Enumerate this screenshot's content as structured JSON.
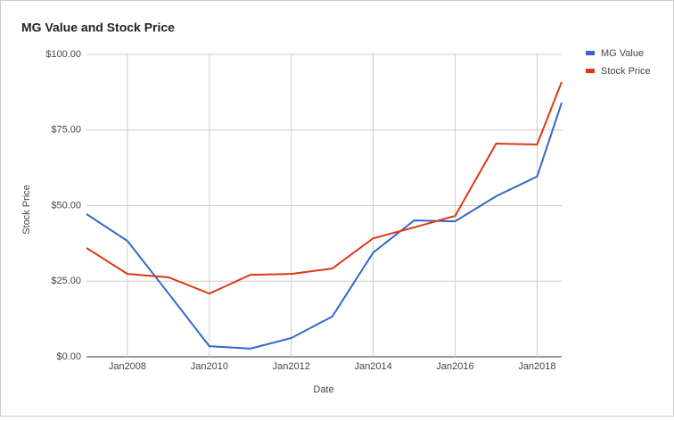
{
  "chart_data": {
    "type": "line",
    "title": "MG Value and Stock Price",
    "x_label": "Date",
    "y_label": "Stock Price",
    "x": [
      2007,
      2008,
      2009,
      2010,
      2011,
      2012,
      2013,
      2014,
      2015,
      2016,
      2017,
      2018,
      2018.6
    ],
    "series": [
      {
        "name": "MG Value",
        "color": "#3366cc",
        "values": [
          47.2,
          38.3,
          21,
          3.5,
          2.7,
          6.2,
          13.3,
          34.5,
          45.1,
          44.8,
          53.1,
          59.6,
          84
        ]
      },
      {
        "name": "Stock Price",
        "color": "#dc3912",
        "values": [
          36,
          27.4,
          26.3,
          20.9,
          27.1,
          27.4,
          29.2,
          39.2,
          42.8,
          46.6,
          70.5,
          70.2,
          90.9
        ]
      }
    ],
    "xlim": [
      2007,
      2018.6
    ],
    "xticks": [
      {
        "value": 2008,
        "label": "Jan2008"
      },
      {
        "value": 2010,
        "label": "Jan2010"
      },
      {
        "value": 2012,
        "label": "Jan2012"
      },
      {
        "value": 2014,
        "label": "Jan2014"
      },
      {
        "value": 2016,
        "label": "Jan2016"
      },
      {
        "value": 2018,
        "label": "Jan2018"
      }
    ],
    "ylim": [
      0,
      100
    ],
    "yticks": [
      {
        "value": 0,
        "label": "$0.00"
      },
      {
        "value": 25,
        "label": "$25.00"
      },
      {
        "value": 50,
        "label": "$50.00"
      },
      {
        "value": 75,
        "label": "$75.00"
      },
      {
        "value": 100,
        "label": "$100.00"
      }
    ],
    "grid": true,
    "legend": "right"
  }
}
